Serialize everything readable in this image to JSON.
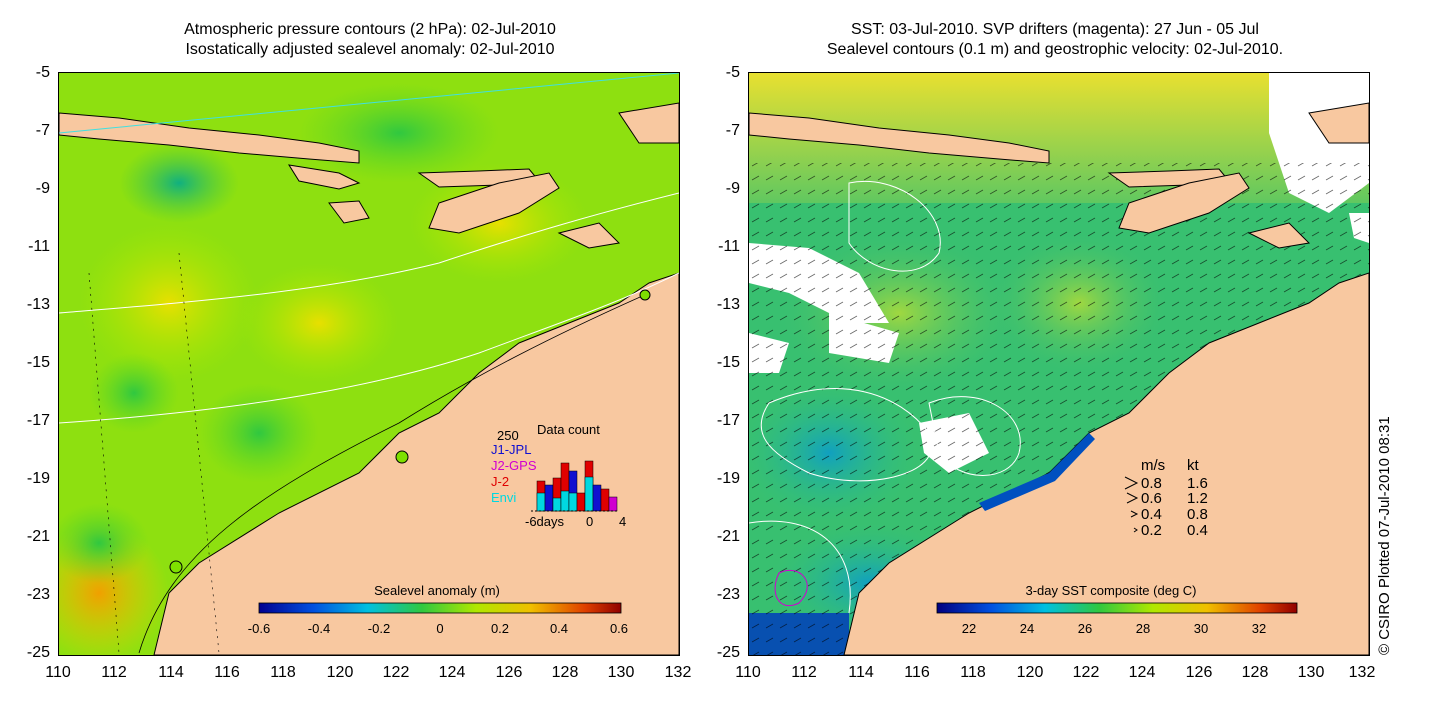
{
  "left": {
    "title_line1": "Atmospheric pressure contours (2 hPa): 02-Jul-2010",
    "title_line2": "Isostatically adjusted sealevel anomaly: 02-Jul-2010",
    "colorbar": {
      "label": "Sealevel anomaly (m)",
      "ticks": [
        "-0.6",
        "-0.4",
        "-0.2",
        "0",
        "0.2",
        "0.4",
        "0.6"
      ]
    },
    "data_count": {
      "title": "Data count",
      "max": "250",
      "legend": [
        {
          "label": "J1-JPL",
          "color": "#1010d0"
        },
        {
          "label": "J2-GPS",
          "color": "#d000d0"
        },
        {
          "label": "J-2",
          "color": "#e00000"
        },
        {
          "label": "Envi",
          "color": "#00d8e0"
        }
      ],
      "axis_left": "-6days",
      "axis_mid": "0",
      "axis_right": "4"
    }
  },
  "right": {
    "title_line1": "SST: 03-Jul-2010. SVP drifters (magenta): 27 Jun - 05 Jul",
    "title_line2": "Sealevel contours (0.1 m) and geostrophic velocity: 02-Jul-2010.",
    "colorbar": {
      "label": "3-day SST composite (deg C)",
      "ticks": [
        "22",
        "24",
        "26",
        "28",
        "30",
        "32"
      ]
    },
    "velocity_legend": {
      "head_ms": "m/s",
      "head_kt": "kt",
      "rows": [
        {
          "ms": "0.8",
          "kt": "1.6"
        },
        {
          "ms": "0.6",
          "kt": "1.2"
        },
        {
          "ms": "0.4",
          "kt": "0.8"
        },
        {
          "ms": "0.2",
          "kt": "0.4"
        }
      ]
    }
  },
  "axes": {
    "y_ticks": [
      "-5",
      "-7",
      "-9",
      "-11",
      "-13",
      "-15",
      "-17",
      "-19",
      "-21",
      "-23",
      "-25"
    ],
    "x_ticks": [
      "110",
      "112",
      "114",
      "116",
      "118",
      "120",
      "122",
      "124",
      "126",
      "128",
      "130",
      "132"
    ]
  },
  "credit": "© CSIRO Plotted 07-Jul-2010 08:31",
  "colors": {
    "land": "#f8c8a0",
    "ocean_green": "#7ee000",
    "sst_green": "#30c060",
    "sst_yellow": "#f0e020",
    "sst_blue": "#0060d0"
  }
}
